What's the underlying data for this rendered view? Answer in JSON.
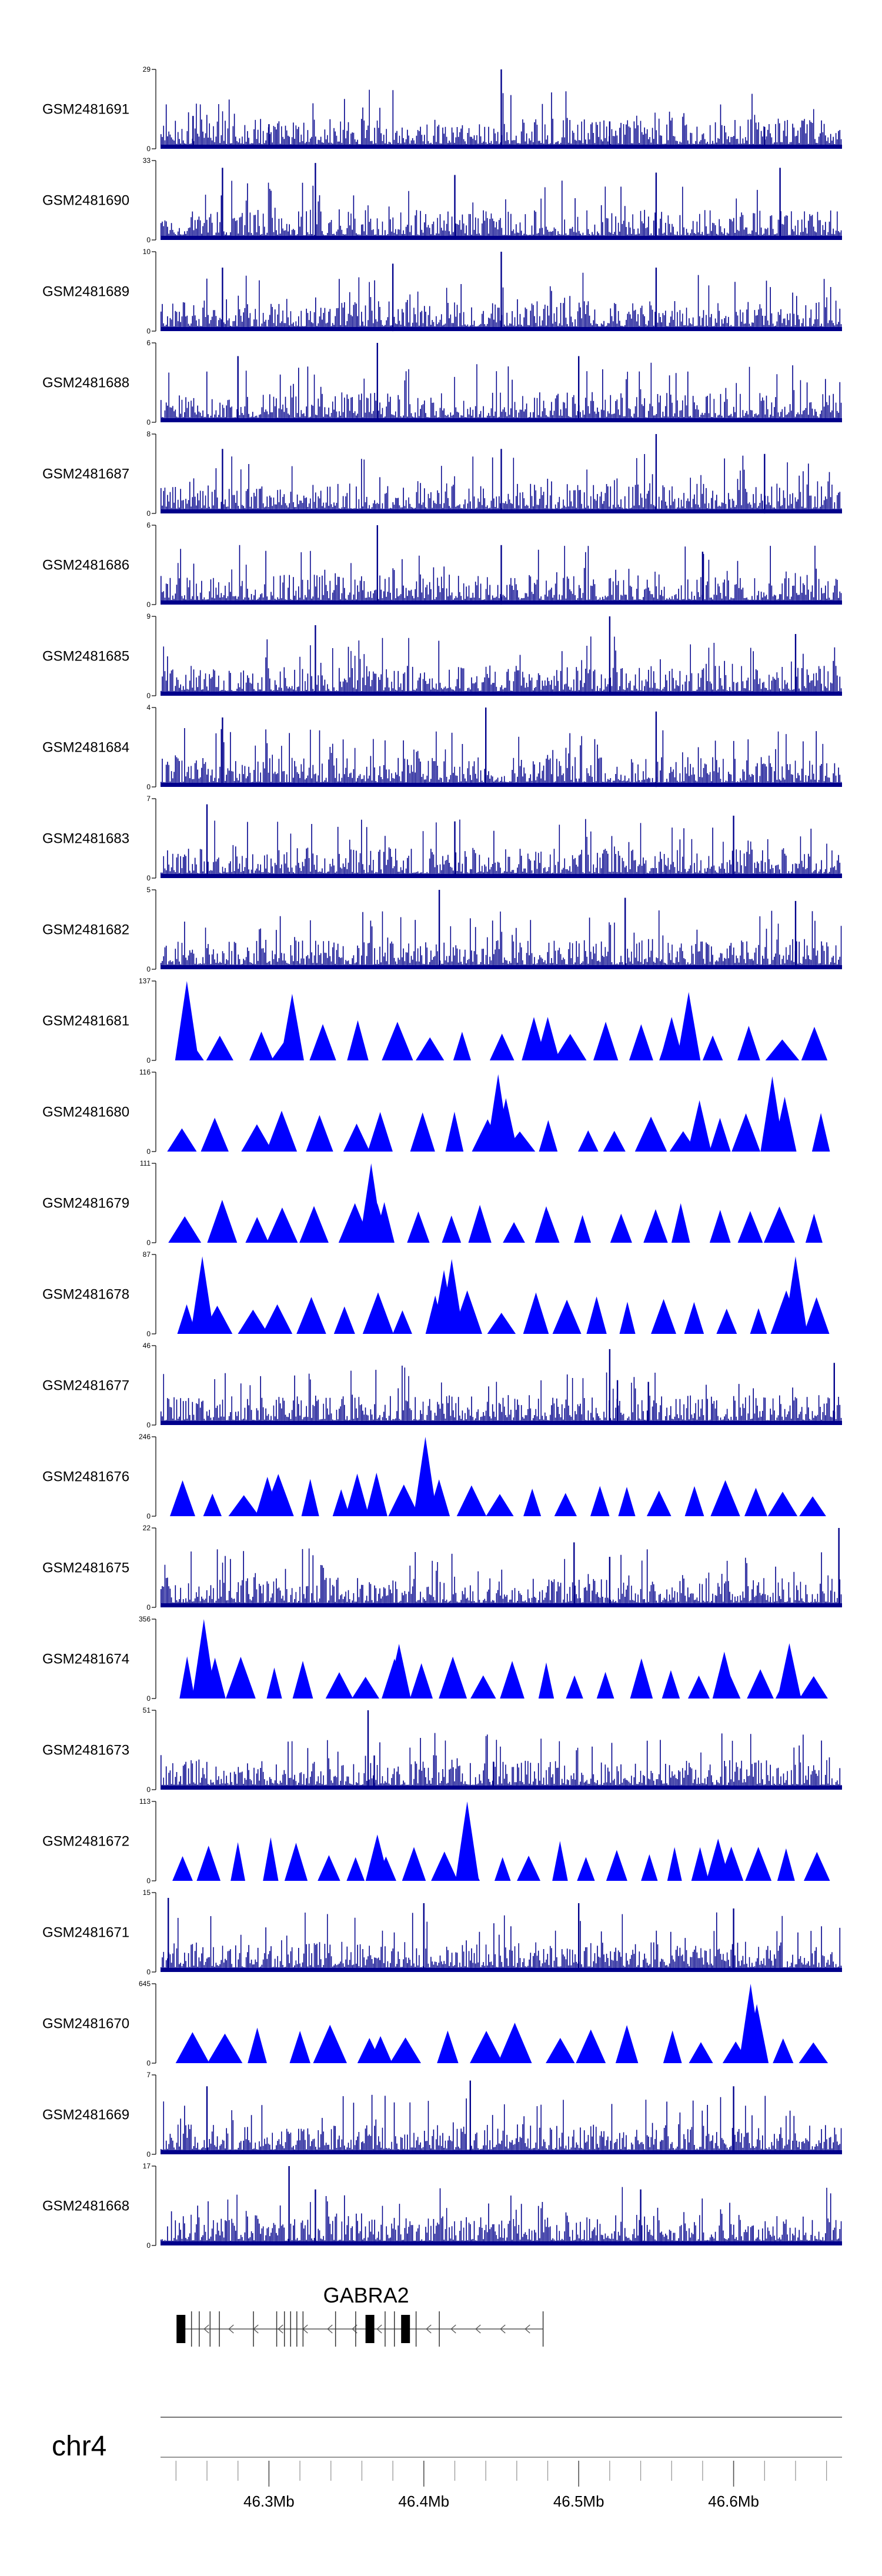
{
  "chart_data": {
    "type": "area",
    "title": "",
    "chromosome": "chr4",
    "x_range_mb": [
      46.23,
      46.67
    ],
    "x_ticks_mb": [
      46.3,
      46.4,
      46.5,
      46.6
    ],
    "x_tick_labels": [
      "46.3Mb",
      "46.4Mb",
      "46.5Mb",
      "46.6Mb"
    ],
    "fill_color": "#00008b",
    "sparse_fill_color": "#0000ff",
    "gene": {
      "name": "GABRA2",
      "start_mb": 46.243,
      "end_mb": 46.477,
      "strand": "-"
    },
    "series": [
      {
        "name": "GSM2481691",
        "ymax": 29,
        "ymin": 0,
        "style": "dense",
        "peaks": [
          [
            46.251,
            12
          ],
          [
            46.3,
            9
          ],
          [
            46.45,
            29
          ],
          [
            46.52,
            10
          ],
          [
            46.62,
            8
          ]
        ]
      },
      {
        "name": "GSM2481690",
        "ymax": 33,
        "ymin": 0,
        "style": "dense",
        "peaks": [
          [
            46.27,
            30
          ],
          [
            46.33,
            32
          ],
          [
            46.42,
            27
          ],
          [
            46.55,
            28
          ],
          [
            46.63,
            30
          ]
        ]
      },
      {
        "name": "GSM2481689",
        "ymax": 10,
        "ymin": 0,
        "style": "dense",
        "peaks": [
          [
            46.27,
            8
          ],
          [
            46.38,
            8.5
          ],
          [
            46.45,
            10
          ],
          [
            46.55,
            8
          ]
        ]
      },
      {
        "name": "GSM2481688",
        "ymax": 6,
        "ymin": 0,
        "style": "dense",
        "peaks": [
          [
            46.28,
            5
          ],
          [
            46.37,
            6
          ],
          [
            46.5,
            5
          ]
        ]
      },
      {
        "name": "GSM2481687",
        "ymax": 8,
        "ymin": 0,
        "style": "dense",
        "peaks": [
          [
            46.27,
            6.5
          ],
          [
            46.45,
            6.5
          ],
          [
            46.55,
            8
          ],
          [
            46.62,
            6
          ]
        ]
      },
      {
        "name": "GSM2481686",
        "ymax": 6,
        "ymin": 0,
        "style": "dense",
        "peaks": [
          [
            46.37,
            6
          ],
          [
            46.45,
            4.5
          ],
          [
            46.58,
            4
          ]
        ]
      },
      {
        "name": "GSM2481685",
        "ymax": 9,
        "ymin": 0,
        "style": "dense",
        "peaks": [
          [
            46.33,
            8
          ],
          [
            46.52,
            9
          ],
          [
            46.64,
            7
          ]
        ]
      },
      {
        "name": "GSM2481684",
        "ymax": 4,
        "ymin": 0,
        "style": "dense",
        "peaks": [
          [
            46.27,
            3.5
          ],
          [
            46.44,
            4
          ],
          [
            46.55,
            3.8
          ]
        ]
      },
      {
        "name": "GSM2481683",
        "ymax": 7,
        "ymin": 0,
        "style": "dense",
        "peaks": [
          [
            46.26,
            6.5
          ],
          [
            46.42,
            5
          ],
          [
            46.6,
            5.5
          ]
        ]
      },
      {
        "name": "GSM2481682",
        "ymax": 5,
        "ymin": 0,
        "style": "dense",
        "peaks": [
          [
            46.41,
            5
          ],
          [
            46.53,
            4.5
          ],
          [
            46.64,
            4.3
          ]
        ]
      },
      {
        "name": "GSM2481681",
        "ymax": 137,
        "ymin": 0,
        "style": "sparse",
        "peaks": [
          [
            46.247,
            137
          ],
          [
            46.315,
            115
          ],
          [
            46.571,
            118
          ],
          [
            46.56,
            75
          ],
          [
            46.48,
            75
          ]
        ]
      },
      {
        "name": "GSM2481680",
        "ymax": 116,
        "ymin": 0,
        "style": "sparse",
        "peaks": [
          [
            46.448,
            113
          ],
          [
            46.453,
            78
          ],
          [
            46.578,
            75
          ],
          [
            46.625,
            110
          ],
          [
            46.633,
            80
          ]
        ]
      },
      {
        "name": "GSM2481679",
        "ymax": 111,
        "ymin": 0,
        "style": "sparse",
        "peaks": [
          [
            46.366,
            111
          ],
          [
            46.37,
            55
          ],
          [
            46.48,
            45
          ]
        ]
      },
      {
        "name": "GSM2481678",
        "ymax": 87,
        "ymin": 0,
        "style": "sparse",
        "peaks": [
          [
            46.257,
            85
          ],
          [
            46.413,
            70
          ],
          [
            46.418,
            82
          ],
          [
            46.64,
            85
          ]
        ]
      },
      {
        "name": "GSM2481677",
        "ymax": 46,
        "ymin": 0,
        "style": "dense",
        "peaks": [
          [
            46.52,
            44
          ],
          [
            46.525,
            26
          ],
          [
            46.545,
            25
          ],
          [
            46.665,
            36
          ]
        ]
      },
      {
        "name": "GSM2481676",
        "ymax": 246,
        "ymin": 0,
        "style": "sparse",
        "peaks": [
          [
            46.299,
            122
          ],
          [
            46.357,
            132
          ],
          [
            46.401,
            246
          ]
        ]
      },
      {
        "name": "GSM2481675",
        "ymax": 22,
        "ymin": 0,
        "style": "dense",
        "peaks": [
          [
            46.497,
            18
          ],
          [
            46.52,
            14
          ],
          [
            46.668,
            22
          ]
        ]
      },
      {
        "name": "GSM2481674",
        "ymax": 356,
        "ymin": 0,
        "style": "sparse",
        "peaks": [
          [
            46.258,
            356
          ],
          [
            46.384,
            245
          ],
          [
            46.594,
            210
          ],
          [
            46.636,
            248
          ]
        ]
      },
      {
        "name": "GSM2481673",
        "ymax": 51,
        "ymin": 0,
        "style": "dense",
        "peaks": [
          [
            46.364,
            51
          ],
          [
            46.368,
            22
          ],
          [
            46.445,
            18
          ]
        ]
      },
      {
        "name": "GSM2481672",
        "ymax": 113,
        "ymin": 0,
        "style": "sparse",
        "peaks": [
          [
            46.37,
            66
          ],
          [
            46.428,
            113
          ],
          [
            46.59,
            60
          ]
        ]
      },
      {
        "name": "GSM2481671",
        "ymax": 15,
        "ymin": 0,
        "style": "dense",
        "peaks": [
          [
            46.235,
            14
          ],
          [
            46.4,
            13
          ],
          [
            46.5,
            13
          ],
          [
            46.6,
            12
          ]
        ]
      },
      {
        "name": "GSM2481670",
        "ymax": 645,
        "ymin": 0,
        "style": "sparse",
        "peaks": [
          [
            46.611,
            645
          ],
          [
            46.372,
            220
          ],
          [
            46.615,
            480
          ]
        ]
      },
      {
        "name": "GSM2481669",
        "ymax": 7,
        "ymin": 0,
        "style": "dense",
        "peaks": [
          [
            46.26,
            6
          ],
          [
            46.43,
            6.5
          ],
          [
            46.6,
            6
          ]
        ]
      },
      {
        "name": "GSM2481668",
        "ymax": 17,
        "ymin": 0,
        "style": "dense",
        "peaks": [
          [
            46.313,
            17
          ],
          [
            46.33,
            12
          ],
          [
            46.54,
            12
          ]
        ]
      }
    ]
  }
}
